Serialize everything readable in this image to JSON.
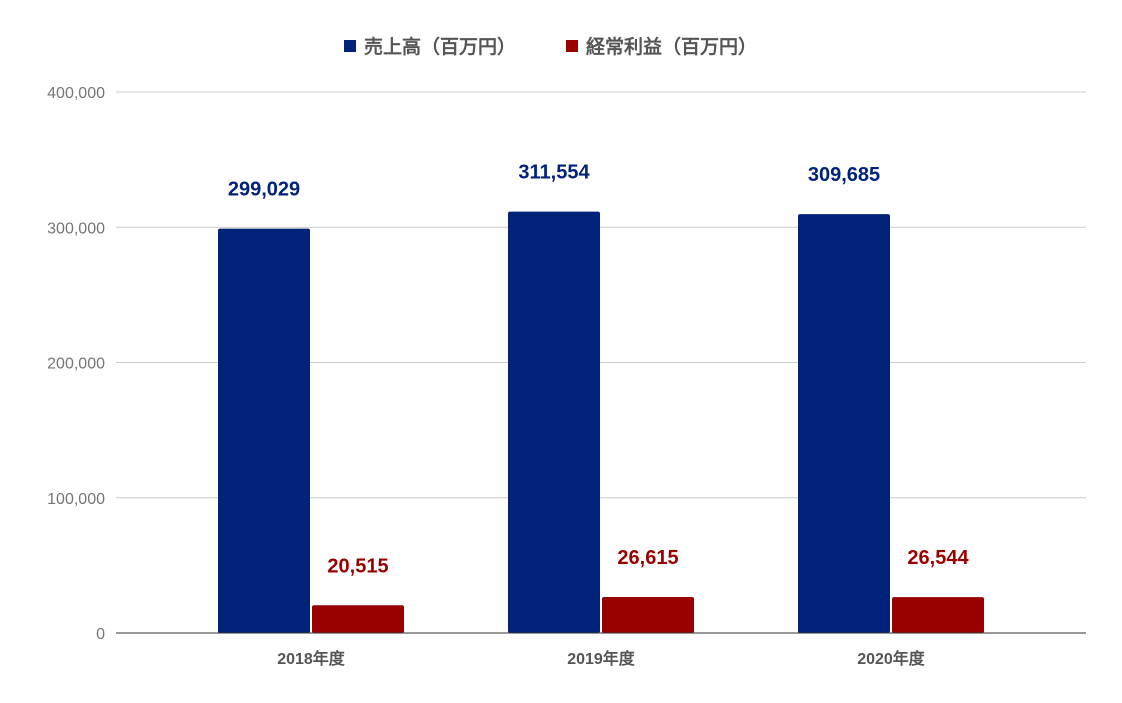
{
  "chart_data": {
    "type": "bar",
    "categories": [
      "2018年度",
      "2019年度",
      "2020年度"
    ],
    "series": [
      {
        "name": "売上高（百万円）",
        "color": "#002279",
        "values": [
          299029,
          311554,
          309685
        ],
        "value_labels": [
          "299,029",
          "311,554",
          "309,685"
        ]
      },
      {
        "name": "経常利益（百万円）",
        "color": "#990000",
        "values": [
          20515,
          26615,
          26544
        ],
        "value_labels": [
          "20,515",
          "26,615",
          "26,544"
        ]
      }
    ],
    "ylim": [
      0,
      400000
    ],
    "yticks": [
      0,
      100000,
      200000,
      300000,
      400000
    ],
    "ytick_labels": [
      "0",
      "100,000",
      "200,000",
      "300,000",
      "400,000"
    ],
    "title": "",
    "xlabel": "",
    "ylabel": "",
    "grid": true,
    "legend_position": "top"
  }
}
